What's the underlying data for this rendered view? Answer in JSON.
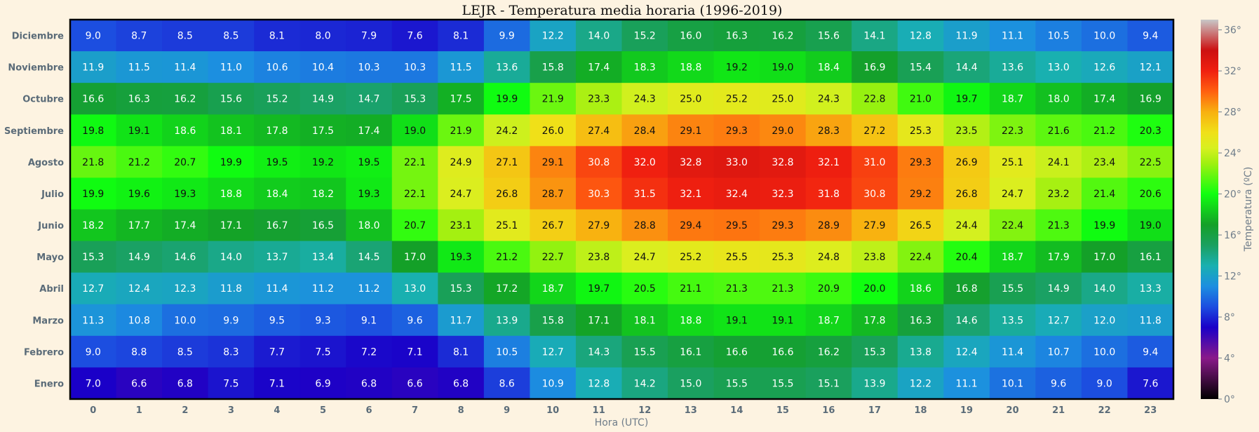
{
  "chart_data": {
    "type": "heatmap",
    "title": "LEJR - Temperatura media horaria (1996-2019)",
    "xlabel": "Hora (UTC)",
    "ylabel": "",
    "colorbar_label": "Temperatura (ºC)",
    "colorbar_ticks": [
      "0°",
      "4°",
      "8°",
      "12°",
      "16°",
      "20°",
      "24°",
      "28°",
      "32°",
      "36°"
    ],
    "colorbar_range": [
      0,
      37
    ],
    "x": [
      "0",
      "1",
      "2",
      "3",
      "4",
      "5",
      "6",
      "7",
      "8",
      "9",
      "10",
      "11",
      "12",
      "13",
      "14",
      "15",
      "16",
      "17",
      "18",
      "19",
      "20",
      "21",
      "22",
      "23"
    ],
    "y": [
      "Diciembre",
      "Noviembre",
      "Octubre",
      "Septiembre",
      "Agosto",
      "Julio",
      "Junio",
      "Mayo",
      "Abril",
      "Marzo",
      "Febrero",
      "Enero"
    ],
    "values": [
      [
        "9.0",
        "8.7",
        "8.5",
        "8.5",
        "8.1",
        "8.0",
        "7.9",
        "7.6",
        "8.1",
        "9.9",
        "12.2",
        "14.0",
        "15.2",
        "16.0",
        "16.3",
        "16.2",
        "15.6",
        "14.1",
        "12.8",
        "11.9",
        "11.1",
        "10.5",
        "10.0",
        "9.4"
      ],
      [
        "11.9",
        "11.5",
        "11.4",
        "11.0",
        "10.6",
        "10.4",
        "10.3",
        "10.3",
        "11.5",
        "13.6",
        "15.8",
        "17.4",
        "18.3",
        "18.8",
        "19.2",
        "19.0",
        "18.4",
        "16.9",
        "15.4",
        "14.4",
        "13.6",
        "13.0",
        "12.6",
        "12.1"
      ],
      [
        "16.6",
        "16.3",
        "16.2",
        "15.6",
        "15.2",
        "14.9",
        "14.7",
        "15.3",
        "17.5",
        "19.9",
        "21.9",
        "23.3",
        "24.3",
        "25.0",
        "25.2",
        "25.0",
        "24.3",
        "22.8",
        "21.0",
        "19.7",
        "18.7",
        "18.0",
        "17.4",
        "16.9"
      ],
      [
        "19.8",
        "19.1",
        "18.6",
        "18.1",
        "17.8",
        "17.5",
        "17.4",
        "19.0",
        "21.9",
        "24.2",
        "26.0",
        "27.4",
        "28.4",
        "29.1",
        "29.3",
        "29.0",
        "28.3",
        "27.2",
        "25.3",
        "23.5",
        "22.3",
        "21.6",
        "21.2",
        "20.3"
      ],
      [
        "21.8",
        "21.2",
        "20.7",
        "19.9",
        "19.5",
        "19.2",
        "19.5",
        "22.1",
        "24.9",
        "27.1",
        "29.1",
        "30.8",
        "32.0",
        "32.8",
        "33.0",
        "32.8",
        "32.1",
        "31.0",
        "29.3",
        "26.9",
        "25.1",
        "24.1",
        "23.4",
        "22.5"
      ],
      [
        "19.9",
        "19.6",
        "19.3",
        "18.8",
        "18.4",
        "18.2",
        "19.3",
        "22.1",
        "24.7",
        "26.8",
        "28.7",
        "30.3",
        "31.5",
        "32.1",
        "32.4",
        "32.3",
        "31.8",
        "30.8",
        "29.2",
        "26.8",
        "24.7",
        "23.2",
        "21.4",
        "20.6"
      ],
      [
        "18.2",
        "17.7",
        "17.4",
        "17.1",
        "16.7",
        "16.5",
        "18.0",
        "20.7",
        "23.1",
        "25.1",
        "26.7",
        "27.9",
        "28.8",
        "29.4",
        "29.5",
        "29.3",
        "28.9",
        "27.9",
        "26.5",
        "24.4",
        "22.4",
        "21.3",
        "19.9",
        "19.0"
      ],
      [
        "15.3",
        "14.9",
        "14.6",
        "14.0",
        "13.7",
        "13.4",
        "14.5",
        "17.0",
        "19.3",
        "21.2",
        "22.7",
        "23.8",
        "24.7",
        "25.2",
        "25.5",
        "25.3",
        "24.8",
        "23.8",
        "22.4",
        "20.4",
        "18.7",
        "17.9",
        "17.0",
        "16.1"
      ],
      [
        "12.7",
        "12.4",
        "12.3",
        "11.8",
        "11.4",
        "11.2",
        "11.2",
        "13.0",
        "15.3",
        "17.2",
        "18.7",
        "19.7",
        "20.5",
        "21.1",
        "21.3",
        "21.3",
        "20.9",
        "20.0",
        "18.6",
        "16.8",
        "15.5",
        "14.9",
        "14.0",
        "13.3"
      ],
      [
        "11.3",
        "10.8",
        "10.0",
        "9.9",
        "9.5",
        "9.3",
        "9.1",
        "9.6",
        "11.7",
        "13.9",
        "15.8",
        "17.1",
        "18.1",
        "18.8",
        "19.1",
        "19.1",
        "18.7",
        "17.8",
        "16.3",
        "14.6",
        "13.5",
        "12.7",
        "12.0",
        "11.8"
      ],
      [
        "9.0",
        "8.8",
        "8.5",
        "8.3",
        "7.7",
        "7.5",
        "7.2",
        "7.1",
        "8.1",
        "10.5",
        "12.7",
        "14.3",
        "15.5",
        "16.1",
        "16.6",
        "16.6",
        "16.2",
        "15.3",
        "13.8",
        "12.4",
        "11.4",
        "10.7",
        "10.0",
        "9.4"
      ],
      [
        "7.0",
        "6.6",
        "6.8",
        "7.5",
        "7.1",
        "6.9",
        "6.8",
        "6.6",
        "6.8",
        "8.6",
        "10.9",
        "12.8",
        "14.2",
        "15.0",
        "15.5",
        "15.5",
        "15.1",
        "13.9",
        "12.2",
        "11.1",
        "10.1",
        "9.6",
        "9.0",
        "7.6"
      ]
    ],
    "colormap_stops": [
      [
        0,
        "#000000"
      ],
      [
        4,
        "#8a1a8a"
      ],
      [
        7,
        "#1a00c8"
      ],
      [
        9,
        "#1c4ee0"
      ],
      [
        11,
        "#1c8fe0"
      ],
      [
        13,
        "#19b0b0"
      ],
      [
        15,
        "#1aa060"
      ],
      [
        17,
        "#14a028"
      ],
      [
        20,
        "#10ff10"
      ],
      [
        23,
        "#a0f010"
      ],
      [
        24.5,
        "#d8f020"
      ],
      [
        26,
        "#f0e018"
      ],
      [
        28,
        "#f8b010"
      ],
      [
        30,
        "#ff6010"
      ],
      [
        32,
        "#f02010"
      ],
      [
        34,
        "#cc1010"
      ],
      [
        37,
        "#c8c8c8"
      ]
    ],
    "grid": false,
    "legend": "colorbar-right"
  }
}
